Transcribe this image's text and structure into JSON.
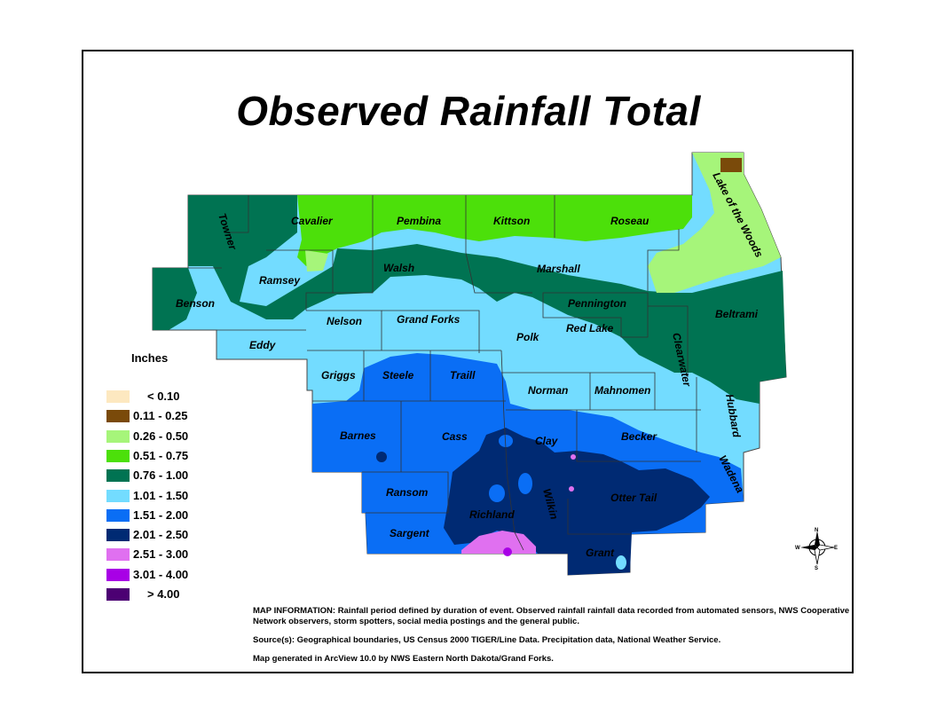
{
  "title": "Observed Rainfall Total",
  "legend": {
    "title": "Inches",
    "items": [
      {
        "label": "< 0.10",
        "color": "#fde8c0"
      },
      {
        "label": "0.11 - 0.25",
        "color": "#7a4a0a"
      },
      {
        "label": "0.26 - 0.50",
        "color": "#a6f57a"
      },
      {
        "label": "0.51 - 0.75",
        "color": "#4ce00a"
      },
      {
        "label": "0.76 - 1.00",
        "color": "#007352"
      },
      {
        "label": "1.01 - 1.50",
        "color": "#73dcff"
      },
      {
        "label": "1.51 - 2.00",
        "color": "#0a6ef5"
      },
      {
        "label": "2.01 - 2.50",
        "color": "#002a73"
      },
      {
        "label": "2.51 - 3.00",
        "color": "#e070f0"
      },
      {
        "label": "3.01 - 4.00",
        "color": "#a800e6"
      },
      {
        "label": "> 4.00",
        "color": "#4c0073"
      }
    ]
  },
  "counties": {
    "towner": "Towner",
    "cavalier": "Cavalier",
    "pembina": "Pembina",
    "kittson": "Kittson",
    "roseau": "Roseau",
    "lake_of_the_woods": "Lake of the Woods",
    "benson": "Benson",
    "ramsey": "Ramsey",
    "walsh": "Walsh",
    "marshall": "Marshall",
    "pennington": "Pennington",
    "red_lake": "Red Lake",
    "beltrami": "Beltrami",
    "eddy": "Eddy",
    "nelson": "Nelson",
    "grand_forks": "Grand Forks",
    "polk": "Polk",
    "clearwater": "Clearwater",
    "griggs": "Griggs",
    "steele": "Steele",
    "traill": "Traill",
    "norman": "Norman",
    "mahnomen": "Mahnomen",
    "hubbard": "Hubbard",
    "barnes": "Barnes",
    "cass": "Cass",
    "clay": "Clay",
    "becker": "Becker",
    "wadena": "Wadena",
    "ransom": "Ransom",
    "richland": "Richland",
    "wilkin": "Wilkin",
    "otter_tail": "Otter Tail",
    "sargent": "Sargent",
    "grant": "Grant"
  },
  "info": {
    "map_information": "MAP INFORMATION:  Rainfall period defined by duration of event.  Observed rainfall rainfall data recorded from automated sensors, NWS Cooperative Network observers, storm spotters, social media postings and the general public.",
    "sources": "Source(s):  Geographical boundaries, US Census 2000 TIGER/Line Data. Precipitation data, National Weather Service.",
    "generated": "Map generated in ArcView 10.0 by NWS Eastern North Dakota/Grand Forks."
  },
  "compass": {
    "n": "N",
    "s": "S",
    "e": "E",
    "w": "W"
  }
}
